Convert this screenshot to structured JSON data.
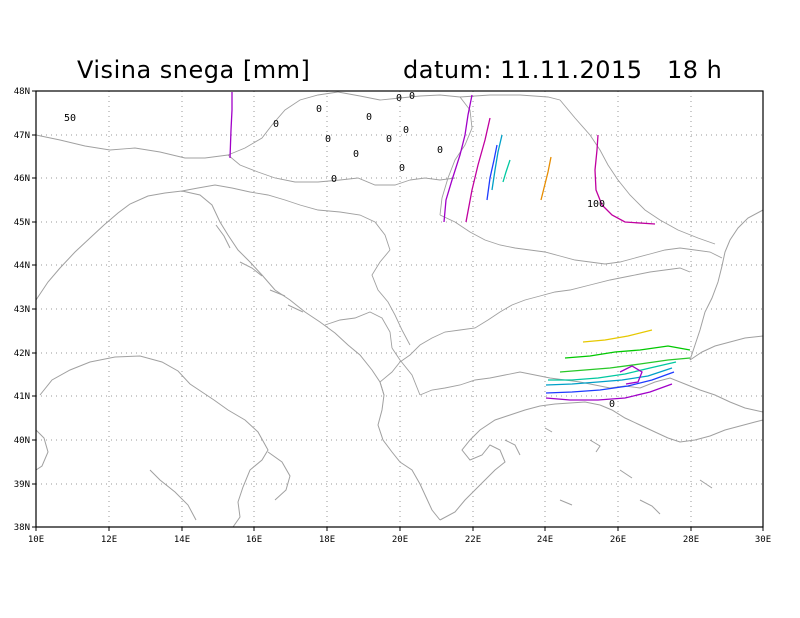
{
  "title": "Visina snega [mm]",
  "date": "datum: 11.11.2015   18 h",
  "axes": {
    "lon_labels": [
      "10E",
      "12E",
      "14E",
      "16E",
      "18E",
      "20E",
      "22E",
      "24E",
      "26E",
      "28E",
      "30E"
    ],
    "lat_labels": [
      "38N",
      "39N",
      "40N",
      "41N",
      "42N",
      "43N",
      "44N",
      "45N",
      "46N",
      "47N",
      "48N"
    ]
  },
  "contour_labels": {
    "zero": "0",
    "fifty": "50",
    "hundred": "100"
  },
  "colors": {
    "coastline": "#a0a0a0",
    "purple": "#a000c8",
    "magenta": "#c000a0",
    "blue": "#1e3cff",
    "cyan": "#00a0c8",
    "teal": "#00c8a0",
    "green": "#00c800",
    "lime": "#28c828",
    "yellow": "#e6c800",
    "orange": "#e68c00"
  }
}
